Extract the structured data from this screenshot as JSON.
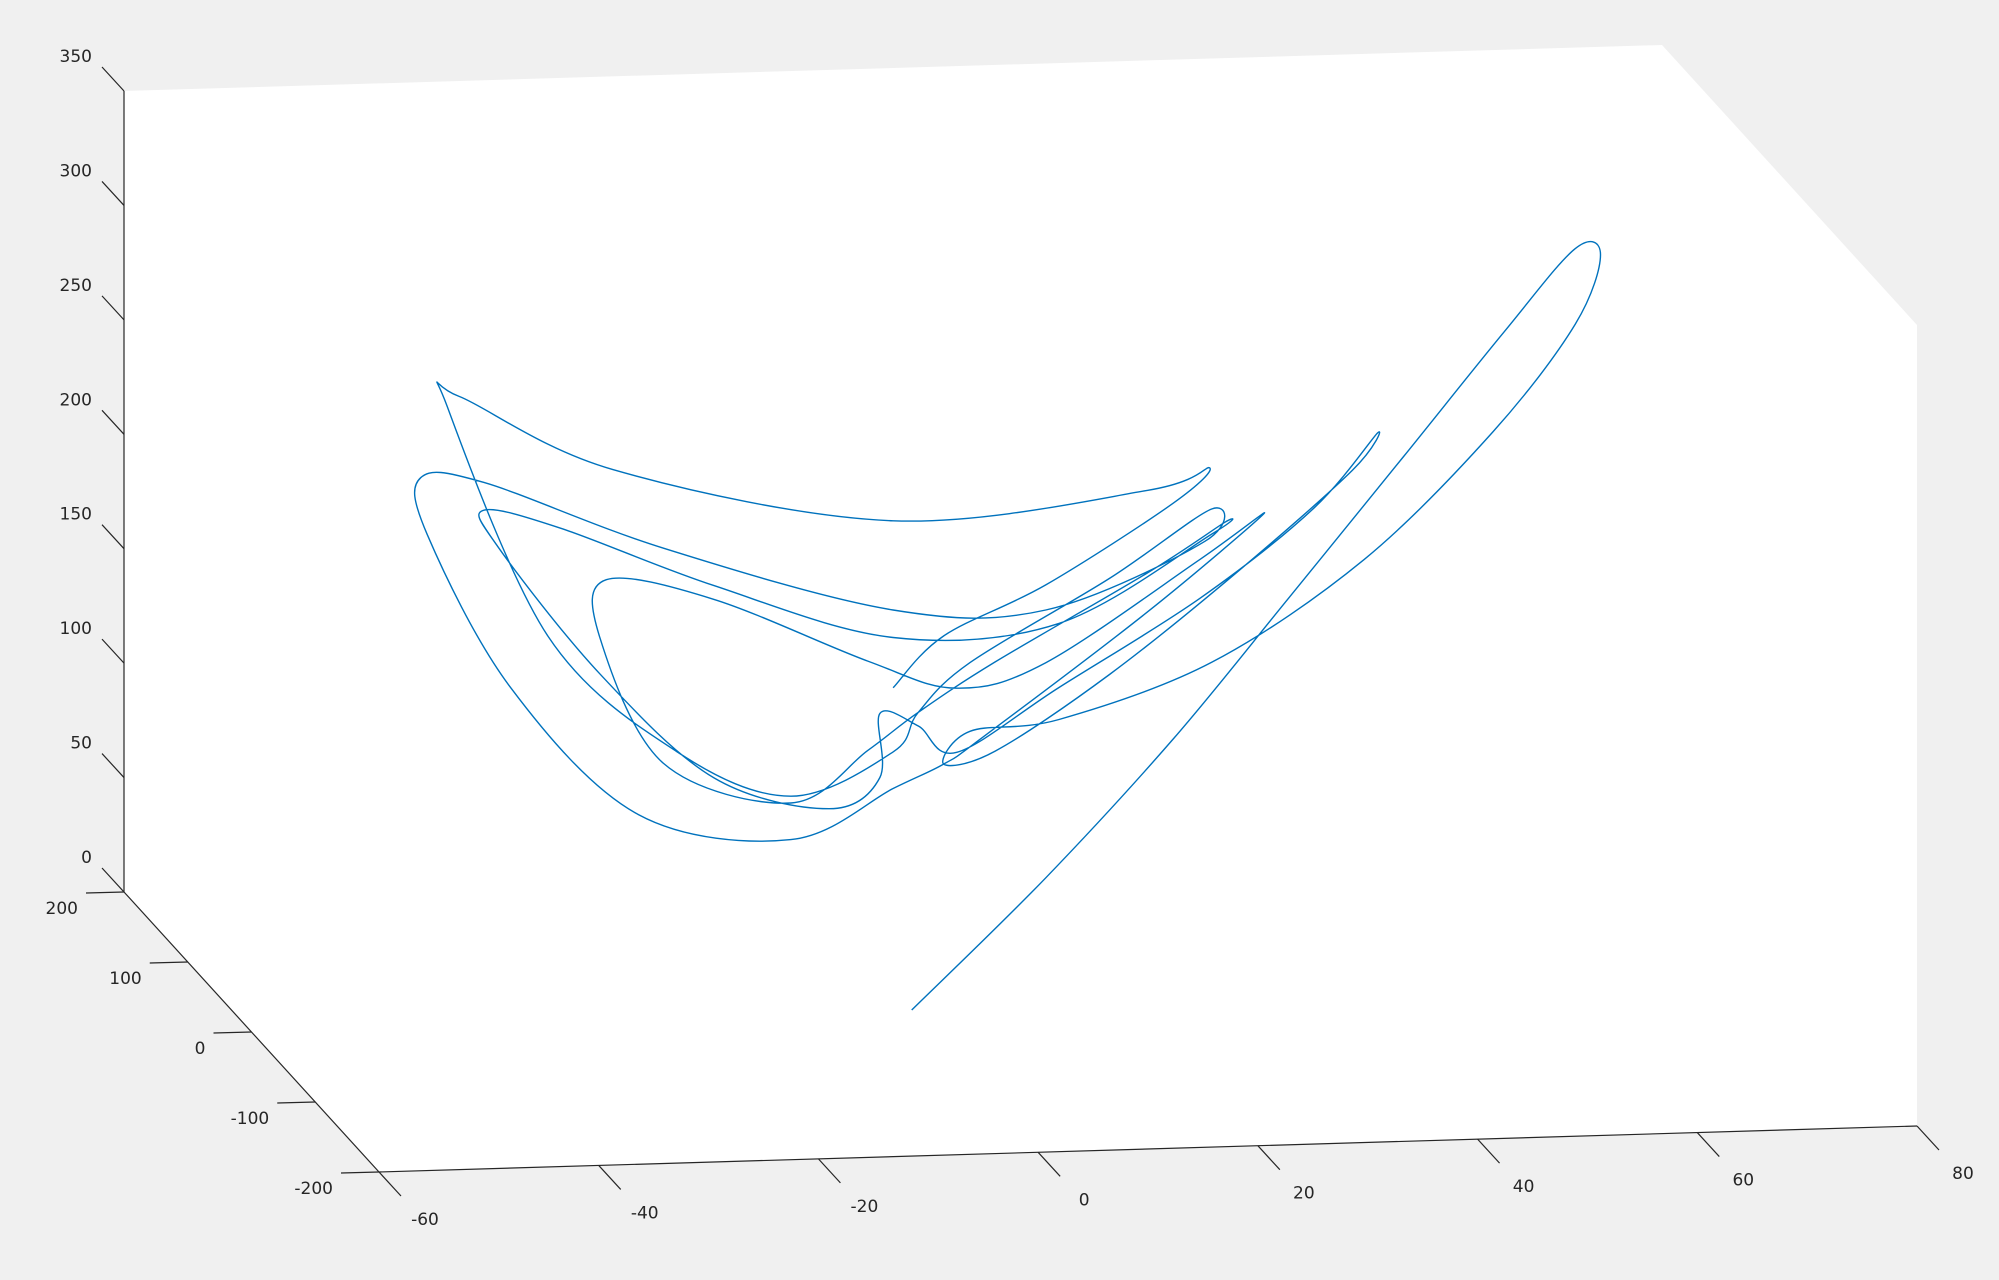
{
  "chart_data": {
    "type": "line3d",
    "xlim": [
      -60,
      80
    ],
    "ylim": [
      -200,
      200
    ],
    "zlim": [
      0,
      350
    ],
    "xticks": [
      -60,
      -40,
      -20,
      0,
      20,
      40,
      60,
      80
    ],
    "yticks": [
      -200,
      -100,
      0,
      100,
      200
    ],
    "zticks": [
      0,
      50,
      100,
      150,
      200,
      250,
      300,
      350
    ],
    "series": [
      {
        "color": "#0072bd",
        "x": [
          0.1,
          12.3,
          23.9,
          34.4,
          44.8,
          54.1,
          60.5,
          62.8,
          60.5,
          53.0,
          41.3,
          27.4,
          13.5,
          5.4,
          3.0,
          7.7,
          18.1,
          29.7,
          40.2,
          42.5,
          36.7,
          26.3,
          13.5,
          4.2,
          0.7,
          -2.8,
          -2.8,
          -7.4,
          -17.9,
          -28.3,
          -37.6,
          -38.8,
          -31.8,
          -17.9,
          -1.6,
          13.5,
          27.4,
          28.6,
          21.6,
          7.7,
          0.7,
          -3.9,
          -10.9,
          -22.5,
          -28.3,
          -27.7,
          -17.9,
          -3.9,
          4.2,
          12.3,
          26.3,
          32.1,
          21.6,
          6.5,
          3.0,
          -1.6,
          -10.9,
          -24.8,
          -36.4,
          -44.0,
          -44.6,
          -38.8,
          -22.5,
          -1.6,
          12.3,
          26.8,
          27.4,
          18.1,
          5.4,
          0.7,
          -1.6,
          -10.9,
          -21.3,
          -33.0,
          -42.2,
          -41.1,
          -27.1,
          -1.6,
          21.6,
          27.2,
          23.9,
          12.3,
          3.0,
          -1.6
        ],
        "y": [
          0,
          0,
          0,
          0,
          0,
          0,
          0,
          0,
          0,
          0,
          0,
          0,
          0,
          0,
          0,
          0,
          0,
          0,
          0,
          0,
          0,
          0,
          0,
          0,
          0,
          0,
          0,
          0,
          0,
          0,
          0,
          0,
          0,
          0,
          0,
          0,
          0,
          0,
          0,
          0,
          0,
          0,
          0,
          0,
          0,
          0,
          0,
          0,
          0,
          0,
          0,
          0,
          0,
          0,
          0,
          0,
          0,
          0,
          0,
          0,
          0,
          0,
          0,
          0,
          0,
          0,
          0,
          0,
          0,
          0,
          0,
          0,
          0,
          0,
          0,
          0,
          0,
          0,
          0,
          0,
          0,
          0,
          0,
          0
        ],
        "z": [
          1,
          57,
          116,
          176,
          236,
          290,
          325,
          322,
          292,
          246,
          192,
          149,
          126,
          122,
          108,
          113,
          145,
          188,
          231,
          247,
          215,
          177,
          140,
          113,
          125,
          131,
          103,
          90,
          105,
          152,
          209,
          225,
          216,
          189,
          164,
          168,
          205,
          210,
          189,
          152,
          131,
          115,
          93,
          112,
          168,
          193,
          183,
          154,
          141,
          151,
          194,
          213,
          172,
          119,
          108,
          98,
          77,
          90,
          147,
          215,
          240,
          237,
          206,
          176,
          174,
          202,
          216,
          187,
          152,
          131,
          114,
          96,
          117,
          169,
          271,
          275,
          241,
          215,
          225,
          234,
          219,
          185,
          164,
          142
        ]
      }
    ]
  }
}
